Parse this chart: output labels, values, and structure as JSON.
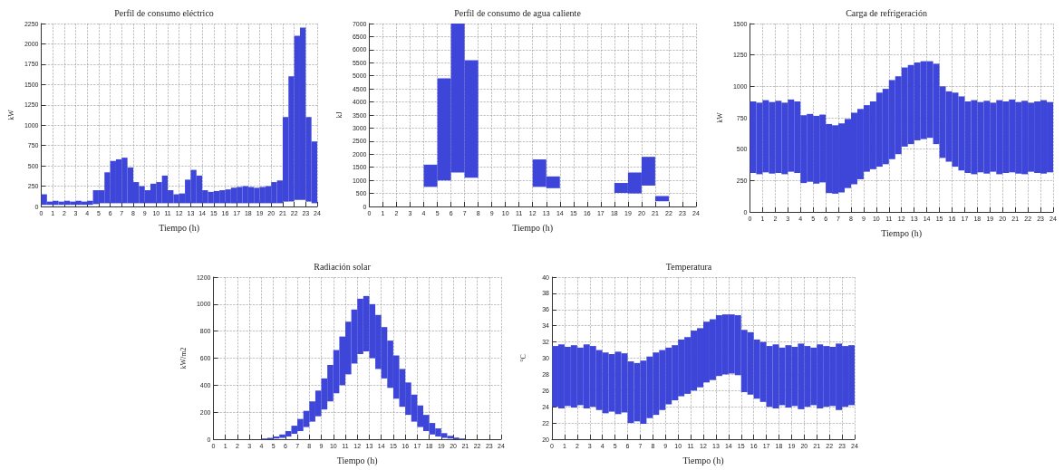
{
  "chart_data": [
    {
      "type": "bar",
      "title": "Perfil de consumo eléctrico",
      "xlabel": "Tiempo (h)",
      "ylabel": "kW",
      "grid": true,
      "x": [
        0.25,
        0.75,
        1.25,
        1.75,
        2.25,
        2.75,
        3.25,
        3.75,
        4.25,
        4.75,
        5.25,
        5.75,
        6.25,
        6.75,
        7.25,
        7.75,
        8.25,
        8.75,
        9.25,
        9.75,
        10.25,
        10.75,
        11.25,
        11.75,
        12.25,
        12.75,
        13.25,
        13.75,
        14.25,
        14.75,
        15.25,
        15.75,
        16.25,
        16.75,
        17.25,
        17.75,
        18.25,
        18.75,
        19.25,
        19.75,
        20.25,
        20.75,
        21.25,
        21.75,
        22.25,
        22.75,
        23.25,
        23.75
      ],
      "series": [
        {
          "color": "#3d46d8",
          "base": [
            20,
            20,
            20,
            20,
            20,
            20,
            20,
            20,
            20,
            30,
            40,
            40,
            40,
            40,
            40,
            40,
            40,
            40,
            40,
            40,
            40,
            40,
            40,
            40,
            40,
            40,
            40,
            40,
            40,
            40,
            40,
            40,
            40,
            40,
            40,
            40,
            40,
            40,
            40,
            40,
            40,
            40,
            60,
            60,
            80,
            80,
            60,
            40
          ],
          "values": [
            130,
            40,
            50,
            40,
            50,
            40,
            50,
            40,
            50,
            170,
            160,
            380,
            520,
            540,
            560,
            440,
            260,
            210,
            160,
            240,
            260,
            340,
            160,
            110,
            120,
            290,
            410,
            340,
            160,
            140,
            150,
            160,
            170,
            190,
            200,
            210,
            200,
            190,
            200,
            210,
            260,
            280,
            1040,
            1540,
            2020,
            2120,
            1040,
            760
          ]
        }
      ],
      "xlim": [
        0,
        24
      ],
      "xticks": [
        0,
        1,
        2,
        3,
        4,
        5,
        6,
        7,
        8,
        9,
        10,
        11,
        12,
        13,
        14,
        15,
        16,
        17,
        18,
        19,
        20,
        21,
        22,
        23,
        24
      ],
      "ylim": [
        0,
        2250
      ],
      "yticks": [
        0,
        250,
        500,
        750,
        1000,
        1250,
        1500,
        1750,
        2000,
        2250
      ]
    },
    {
      "type": "bar",
      "title": "Perfil de consumo de agua caliente",
      "xlabel": "Tiempo (h)",
      "ylabel": "kJ",
      "grid": true,
      "x": [
        4.5,
        5.5,
        6.5,
        7.5,
        12.5,
        13.5,
        18.5,
        19.5,
        20.5,
        21.5
      ],
      "series": [
        {
          "color": "#3d46d8",
          "base": [
            750,
            1000,
            1300,
            1100,
            750,
            700,
            520,
            500,
            800,
            200
          ],
          "values": [
            850,
            3900,
            5700,
            4500,
            1050,
            450,
            380,
            800,
            1100,
            200
          ]
        }
      ],
      "xlim": [
        0,
        24
      ],
      "xticks": [
        0,
        1,
        2,
        3,
        4,
        5,
        6,
        7,
        8,
        9,
        10,
        11,
        12,
        13,
        14,
        15,
        16,
        17,
        18,
        19,
        20,
        21,
        22,
        23,
        24
      ],
      "ylim": [
        0,
        7000
      ],
      "yticks": [
        0,
        500,
        1000,
        1500,
        2000,
        2500,
        3000,
        3500,
        4000,
        4500,
        5000,
        5500,
        6000,
        6500,
        7000
      ]
    },
    {
      "type": "bar",
      "title": "Carga de refrigeración",
      "xlabel": "Tiempo (h)",
      "ylabel": "kW",
      "grid": true,
      "x": [
        0.25,
        0.75,
        1.25,
        1.75,
        2.25,
        2.75,
        3.25,
        3.75,
        4.25,
        4.75,
        5.25,
        5.75,
        6.25,
        6.75,
        7.25,
        7.75,
        8.25,
        8.75,
        9.25,
        9.75,
        10.25,
        10.75,
        11.25,
        11.75,
        12.25,
        12.75,
        13.25,
        13.75,
        14.25,
        14.75,
        15.25,
        15.75,
        16.25,
        16.75,
        17.25,
        17.75,
        18.25,
        18.75,
        19.25,
        19.75,
        20.25,
        20.75,
        21.25,
        21.75,
        22.25,
        22.75,
        23.25,
        23.75
      ],
      "series": [
        {
          "color": "#3d46d8",
          "base": [
            310,
            300,
            315,
            305,
            310,
            300,
            320,
            310,
            230,
            240,
            225,
            235,
            150,
            145,
            155,
            190,
            220,
            260,
            320,
            340,
            360,
            380,
            420,
            460,
            520,
            540,
            570,
            580,
            590,
            540,
            430,
            400,
            360,
            330,
            310,
            300,
            315,
            305,
            320,
            300,
            310,
            315,
            305,
            300,
            320,
            310,
            305,
            315
          ],
          "values": [
            570,
            570,
            575,
            570,
            575,
            570,
            575,
            570,
            540,
            540,
            540,
            540,
            550,
            545,
            550,
            550,
            570,
            560,
            530,
            540,
            590,
            600,
            630,
            620,
            630,
            630,
            620,
            620,
            610,
            640,
            570,
            560,
            590,
            590,
            570,
            590,
            560,
            580,
            550,
            590,
            570,
            580,
            570,
            585,
            550,
            570,
            585,
            560
          ]
        }
      ],
      "xlim": [
        0,
        24
      ],
      "xticks": [
        0,
        1,
        2,
        3,
        4,
        5,
        6,
        7,
        8,
        9,
        10,
        11,
        12,
        13,
        14,
        15,
        16,
        17,
        18,
        19,
        20,
        21,
        22,
        23,
        24
      ],
      "ylim": [
        0,
        1500
      ],
      "yticks": [
        0,
        250,
        500,
        750,
        1000,
        1250,
        1500
      ]
    },
    {
      "type": "bar",
      "title": "Radiación solar",
      "xlabel": "Tiempo (h)",
      "ylabel": "kW/m2",
      "grid": true,
      "x": [
        4.25,
        4.75,
        5.25,
        5.75,
        6.25,
        6.75,
        7.25,
        7.75,
        8.25,
        8.75,
        9.25,
        9.75,
        10.25,
        10.75,
        11.25,
        11.75,
        12.25,
        12.75,
        13.25,
        13.75,
        14.25,
        14.75,
        15.25,
        15.75,
        16.25,
        16.75,
        17.25,
        17.75,
        18.25,
        18.75,
        19.25,
        19.75,
        20.25,
        20.75
      ],
      "series": [
        {
          "color": "#3d46d8",
          "base": [
            0,
            0,
            5,
            10,
            20,
            40,
            60,
            90,
            130,
            170,
            220,
            280,
            340,
            400,
            480,
            560,
            630,
            650,
            600,
            520,
            450,
            380,
            300,
            240,
            180,
            130,
            90,
            60,
            35,
            20,
            10,
            5,
            0,
            0
          ],
          "values": [
            5,
            10,
            15,
            25,
            40,
            60,
            90,
            120,
            150,
            190,
            230,
            270,
            320,
            360,
            390,
            400,
            410,
            410,
            400,
            400,
            380,
            350,
            320,
            280,
            240,
            200,
            160,
            120,
            85,
            60,
            35,
            20,
            12,
            5
          ]
        }
      ],
      "xlim": [
        0,
        24
      ],
      "xticks": [
        0,
        1,
        2,
        3,
        4,
        5,
        6,
        7,
        8,
        9,
        10,
        11,
        12,
        13,
        14,
        15,
        16,
        17,
        18,
        19,
        20,
        21,
        22,
        23,
        24
      ],
      "ylim": [
        0,
        1200
      ],
      "yticks": [
        0,
        200,
        400,
        600,
        800,
        1000,
        1200
      ]
    },
    {
      "type": "bar",
      "title": "Temperatura",
      "xlabel": "Tiempo (h)",
      "ylabel": "°C",
      "grid": true,
      "x": [
        0.25,
        0.75,
        1.25,
        1.75,
        2.25,
        2.75,
        3.25,
        3.75,
        4.25,
        4.75,
        5.25,
        5.75,
        6.25,
        6.75,
        7.25,
        7.75,
        8.25,
        8.75,
        9.25,
        9.75,
        10.25,
        10.75,
        11.25,
        11.75,
        12.25,
        12.75,
        13.25,
        13.75,
        14.25,
        14.75,
        15.25,
        15.75,
        16.25,
        16.75,
        17.25,
        17.75,
        18.25,
        18.75,
        19.25,
        19.75,
        20.25,
        20.75,
        21.25,
        21.75,
        22.25,
        22.75,
        23.25,
        23.75
      ],
      "series": [
        {
          "color": "#3d46d8",
          "base": [
            24,
            23.8,
            24.1,
            23.9,
            24.2,
            23.8,
            24,
            23.6,
            23.2,
            23.4,
            23.1,
            23.3,
            22,
            22.2,
            21.9,
            22.6,
            23,
            23.6,
            24.3,
            24.8,
            25.3,
            25.6,
            26,
            26.4,
            27,
            27.3,
            27.8,
            28,
            28.1,
            27.9,
            25.8,
            25.5,
            25,
            24.6,
            24,
            23.8,
            24.2,
            23.9,
            24.1,
            23.7,
            24,
            24.2,
            23.8,
            24,
            24.1,
            23.6,
            24,
            24.2
          ],
          "values": [
            7.5,
            7.9,
            7.3,
            7.7,
            7.1,
            7.9,
            7.5,
            7.4,
            7.5,
            7.1,
            7.7,
            7.3,
            7.6,
            7.2,
            7.8,
            7.6,
            7.7,
            7.4,
            7,
            6.8,
            7,
            7,
            7.4,
            7.3,
            7.5,
            7.5,
            7.5,
            7.4,
            7.3,
            7.4,
            7.7,
            7.7,
            7.3,
            7.4,
            7.5,
            7.9,
            7.1,
            7.7,
            7.3,
            8.1,
            7.5,
            7.1,
            7.9,
            7.5,
            7.3,
            8.2,
            7.5,
            7.4
          ]
        }
      ],
      "xlim": [
        0,
        24
      ],
      "xticks": [
        0,
        1,
        2,
        3,
        4,
        5,
        6,
        7,
        8,
        9,
        10,
        11,
        12,
        13,
        14,
        15,
        16,
        17,
        18,
        19,
        20,
        21,
        22,
        23,
        24
      ],
      "ylim": [
        20,
        40
      ],
      "yticks": [
        20,
        22,
        24,
        26,
        28,
        30,
        32,
        34,
        36,
        38,
        40
      ]
    }
  ]
}
